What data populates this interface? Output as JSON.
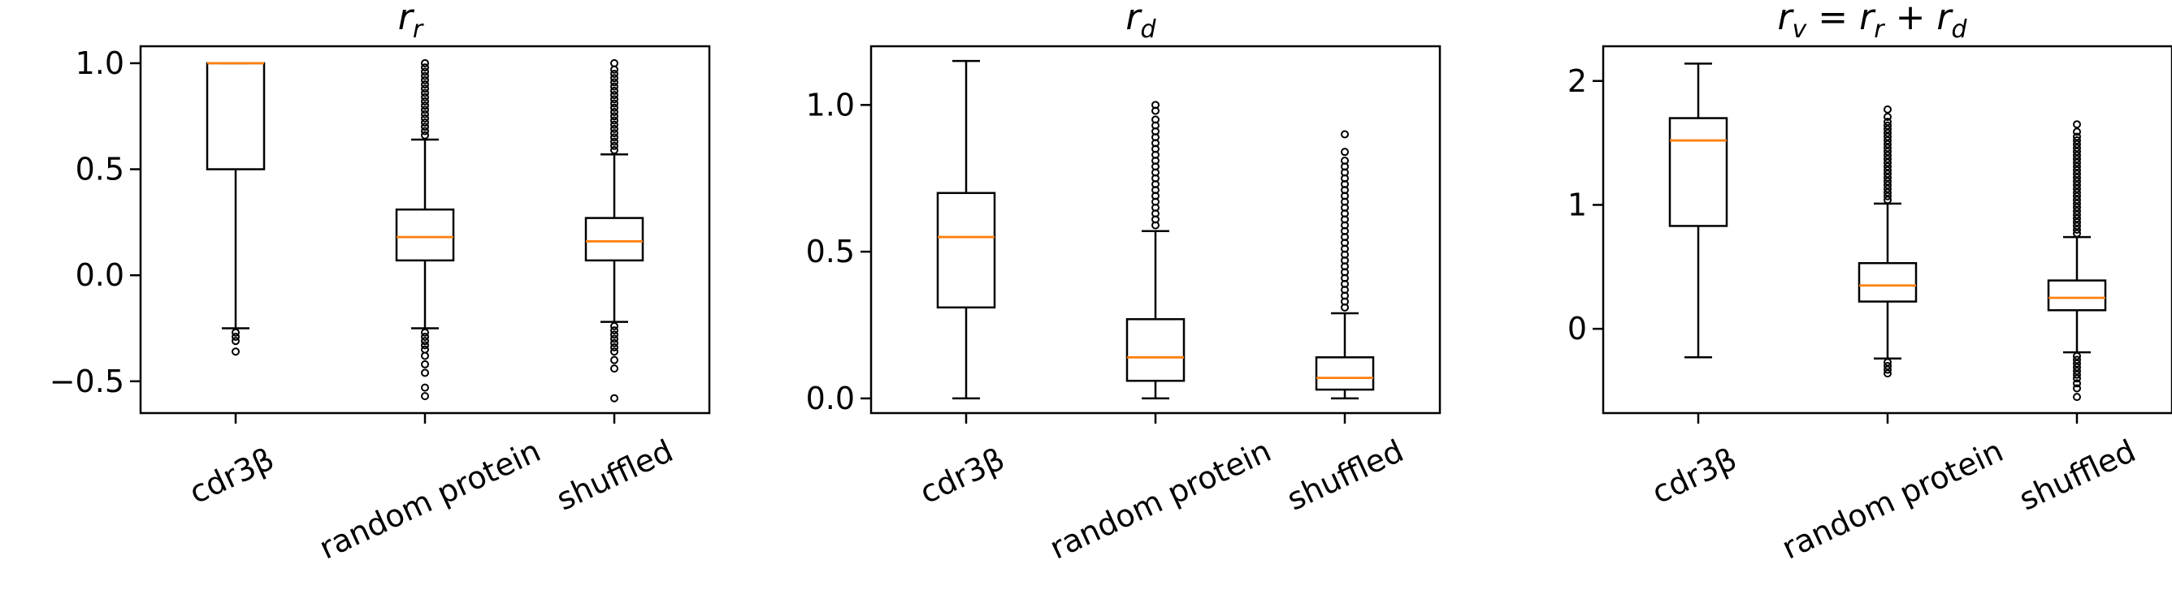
{
  "chart_data": [
    {
      "type": "box",
      "title_main": "r",
      "title_sub": "r",
      "categories": [
        "cdr3β",
        "random protein",
        "shuffled"
      ],
      "ylim": [
        -0.65,
        1.08
      ],
      "yticks": [
        1.0,
        0.5,
        0.0,
        -0.5
      ],
      "ytick_labels": [
        "1.0",
        "0.5",
        "0.0",
        "−0.5"
      ],
      "boxes": [
        {
          "whisker_low": -0.25,
          "q1": 0.5,
          "median": 1.0,
          "q3": 1.0,
          "whisker_high": 1.0,
          "fliers": [
            -0.27,
            -0.29,
            -0.31,
            -0.36
          ]
        },
        {
          "whisker_low": -0.25,
          "q1": 0.07,
          "median": 0.18,
          "q3": 0.31,
          "whisker_high": 0.64,
          "fliers": [
            0.66,
            0.68,
            0.7,
            0.72,
            0.74,
            0.76,
            0.78,
            0.8,
            0.82,
            0.84,
            0.86,
            0.88,
            0.9,
            0.92,
            0.94,
            0.96,
            0.98,
            1.0,
            -0.27,
            -0.29,
            -0.31,
            -0.33,
            -0.35,
            -0.38,
            -0.42,
            -0.46,
            -0.53,
            -0.57
          ]
        },
        {
          "whisker_low": -0.22,
          "q1": 0.07,
          "median": 0.16,
          "q3": 0.27,
          "whisker_high": 0.57,
          "fliers": [
            0.59,
            0.61,
            0.63,
            0.65,
            0.67,
            0.69,
            0.71,
            0.73,
            0.75,
            0.77,
            0.79,
            0.81,
            0.83,
            0.85,
            0.87,
            0.89,
            0.91,
            0.93,
            0.95,
            0.97,
            1.0,
            -0.24,
            -0.26,
            -0.28,
            -0.3,
            -0.32,
            -0.34,
            -0.36,
            -0.4,
            -0.44,
            -0.58
          ]
        }
      ]
    },
    {
      "type": "box",
      "title_main": "r",
      "title_sub": "d",
      "categories": [
        "cdr3β",
        "random protein",
        "shuffled"
      ],
      "ylim": [
        -0.05,
        1.2
      ],
      "yticks": [
        1.0,
        0.5,
        0.0
      ],
      "ytick_labels": [
        "1.0",
        "0.5",
        "0.0"
      ],
      "boxes": [
        {
          "whisker_low": 0.0,
          "q1": 0.31,
          "median": 0.55,
          "q3": 0.7,
          "whisker_high": 1.15,
          "fliers": []
        },
        {
          "whisker_low": 0.0,
          "q1": 0.06,
          "median": 0.14,
          "q3": 0.27,
          "whisker_high": 0.57,
          "fliers": [
            0.59,
            0.61,
            0.63,
            0.65,
            0.67,
            0.69,
            0.71,
            0.73,
            0.75,
            0.77,
            0.79,
            0.81,
            0.83,
            0.85,
            0.87,
            0.89,
            0.91,
            0.93,
            0.95,
            0.98,
            1.0
          ]
        },
        {
          "whisker_low": 0.0,
          "q1": 0.03,
          "median": 0.07,
          "q3": 0.14,
          "whisker_high": 0.29,
          "fliers": [
            0.31,
            0.33,
            0.35,
            0.37,
            0.39,
            0.41,
            0.43,
            0.45,
            0.47,
            0.49,
            0.51,
            0.53,
            0.55,
            0.57,
            0.59,
            0.61,
            0.63,
            0.65,
            0.67,
            0.69,
            0.71,
            0.73,
            0.75,
            0.77,
            0.79,
            0.81,
            0.84,
            0.9
          ]
        }
      ]
    },
    {
      "type": "box",
      "title_main": "r",
      "title_sub": "v",
      "title_rest_1": " = r",
      "title_sub_1": "r",
      "title_rest_2": " + r",
      "title_sub_2": "d",
      "categories": [
        "cdr3β",
        "random protein",
        "shuffled"
      ],
      "ylim": [
        -0.68,
        2.28
      ],
      "yticks": [
        2,
        1,
        0
      ],
      "ytick_labels": [
        "2",
        "1",
        "0"
      ],
      "boxes": [
        {
          "whisker_low": -0.23,
          "q1": 0.83,
          "median": 1.52,
          "q3": 1.7,
          "whisker_high": 2.14,
          "fliers": []
        },
        {
          "whisker_low": -0.24,
          "q1": 0.22,
          "median": 0.35,
          "q3": 0.53,
          "whisker_high": 1.01,
          "fliers": [
            1.04,
            1.07,
            1.1,
            1.13,
            1.16,
            1.19,
            1.22,
            1.25,
            1.28,
            1.31,
            1.34,
            1.37,
            1.4,
            1.43,
            1.46,
            1.49,
            1.52,
            1.55,
            1.58,
            1.61,
            1.64,
            1.67,
            1.71,
            1.77,
            -0.27,
            -0.3,
            -0.33,
            -0.36
          ]
        },
        {
          "whisker_low": -0.19,
          "q1": 0.15,
          "median": 0.25,
          "q3": 0.39,
          "whisker_high": 0.74,
          "fliers": [
            0.77,
            0.8,
            0.83,
            0.86,
            0.89,
            0.92,
            0.95,
            0.98,
            1.01,
            1.04,
            1.07,
            1.1,
            1.13,
            1.16,
            1.19,
            1.22,
            1.25,
            1.28,
            1.31,
            1.34,
            1.37,
            1.4,
            1.43,
            1.46,
            1.49,
            1.52,
            1.55,
            1.59,
            1.65,
            -0.22,
            -0.25,
            -0.28,
            -0.31,
            -0.34,
            -0.37,
            -0.4,
            -0.44,
            -0.48,
            -0.55
          ]
        }
      ]
    }
  ],
  "colors": {
    "median": "#ff7f0e",
    "box_edge": "#000000",
    "background": "#ffffff"
  }
}
